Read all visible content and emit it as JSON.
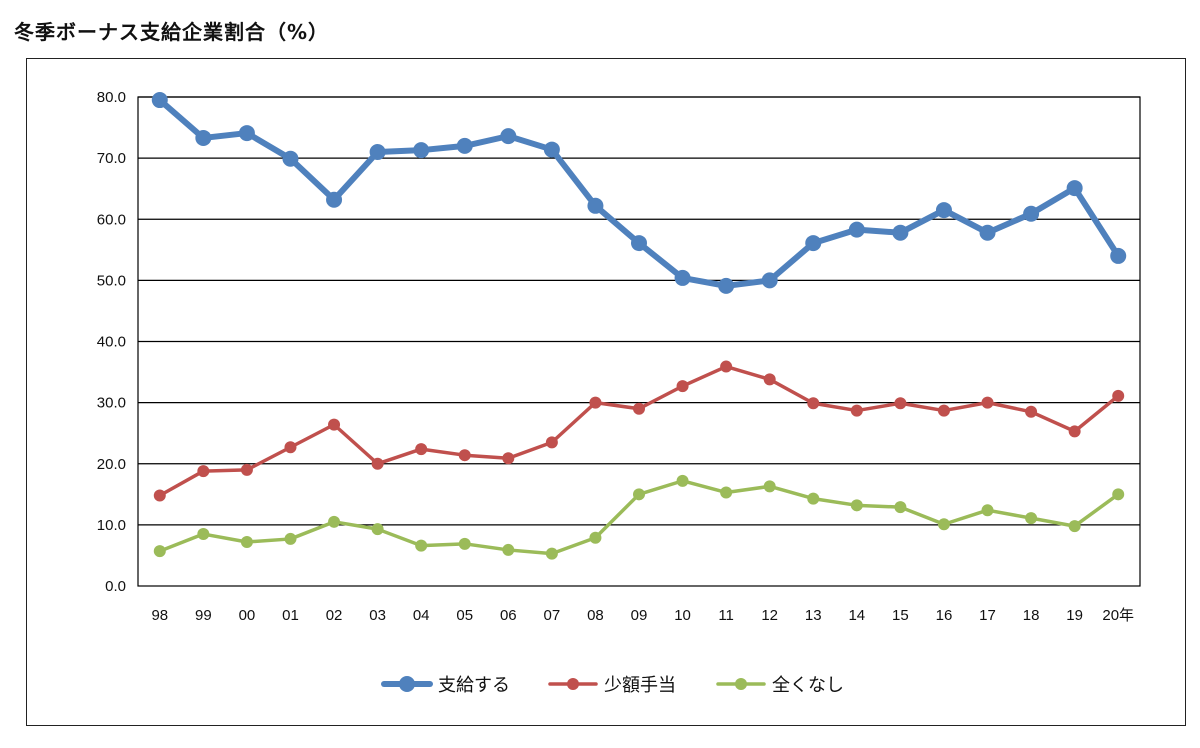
{
  "page": {
    "title": "冬季ボーナス支給企業割合（%）"
  },
  "chart_data": {
    "type": "line",
    "title": "冬季ボーナス支給企業割合（%）",
    "categories": [
      "98",
      "99",
      "00",
      "01",
      "02",
      "03",
      "04",
      "05",
      "06",
      "07",
      "08",
      "09",
      "10",
      "11",
      "12",
      "13",
      "14",
      "15",
      "16",
      "17",
      "18",
      "19",
      "20年"
    ],
    "ylim": [
      0,
      80
    ],
    "yticks": [
      "0.0",
      "10.0",
      "20.0",
      "30.0",
      "40.0",
      "50.0",
      "60.0",
      "70.0",
      "80.0"
    ],
    "grid": true,
    "legend_position": "bottom",
    "series": [
      {
        "name": "支給する",
        "color": "#4f81bd",
        "values": [
          79.5,
          73.3,
          74.1,
          69.9,
          63.2,
          71.0,
          71.3,
          72.0,
          73.6,
          71.4,
          62.2,
          56.1,
          50.4,
          49.1,
          50.0,
          56.1,
          58.3,
          57.8,
          61.5,
          57.8,
          60.9,
          65.1,
          54.0
        ]
      },
      {
        "name": "少額手当",
        "color": "#c0504d",
        "values": [
          14.8,
          18.8,
          19.0,
          22.7,
          26.4,
          20.0,
          22.4,
          21.4,
          20.9,
          23.5,
          30.0,
          29.0,
          32.7,
          35.9,
          33.8,
          29.9,
          28.7,
          29.9,
          28.7,
          30.0,
          28.5,
          25.3,
          31.1
        ]
      },
      {
        "name": "全くなし",
        "color": "#9bbb59",
        "values": [
          5.7,
          8.5,
          7.2,
          7.7,
          10.5,
          9.3,
          6.6,
          6.9,
          5.9,
          5.3,
          7.9,
          15.0,
          17.2,
          15.3,
          16.3,
          14.3,
          13.2,
          12.9,
          10.1,
          12.4,
          11.1,
          9.8,
          15.0
        ]
      }
    ]
  }
}
